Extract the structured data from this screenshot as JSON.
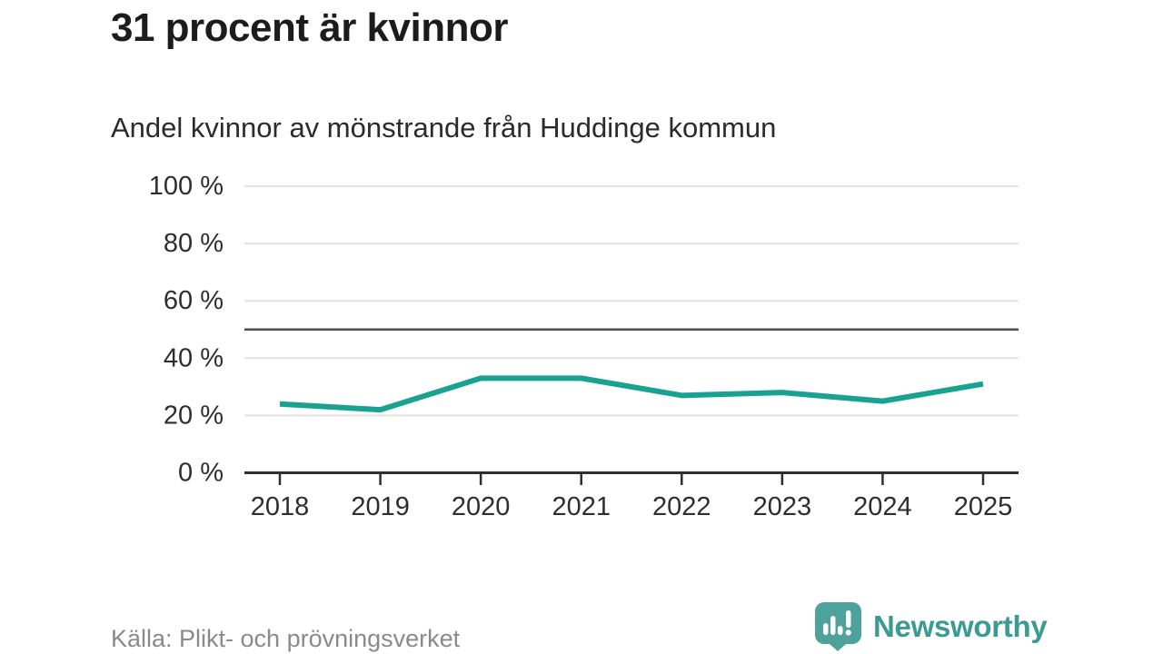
{
  "header": {
    "title": "31 procent är kvinnor",
    "subtitle": "Andel kvinnor av mönstrande från Huddinge kommun"
  },
  "chart_data": {
    "type": "line",
    "title": "31 procent är kvinnor",
    "subtitle": "Andel kvinnor av mönstrande från Huddinge kommun",
    "x": [
      2018,
      2019,
      2020,
      2021,
      2022,
      2023,
      2024,
      2025
    ],
    "series": [
      {
        "name": "Andel kvinnor av mönstrande",
        "values": [
          24,
          22,
          33,
          33,
          27,
          28,
          25,
          31
        ]
      }
    ],
    "xlabel": "",
    "ylabel": "",
    "ylim": [
      0,
      100
    ],
    "y_ticks": [
      0,
      20,
      40,
      60,
      80,
      100
    ],
    "y_tick_suffix": " %",
    "reference_line": 50,
    "grid": true,
    "legend": "none",
    "line_color": "#1aa291",
    "reference_line_color": "#4d4d4d",
    "grid_color": "#e2e2e2",
    "axis_color": "#2f2f2f",
    "tick_label_color": "#2e2e2e"
  },
  "footer": {
    "source": "Källa: Plikt- och prövningsverket",
    "brand": {
      "name": "Newsworthy",
      "icon": "newsworthy-chart-bubble-icon",
      "icon_color": "#4da29c",
      "text_color": "#3b9b93"
    }
  }
}
